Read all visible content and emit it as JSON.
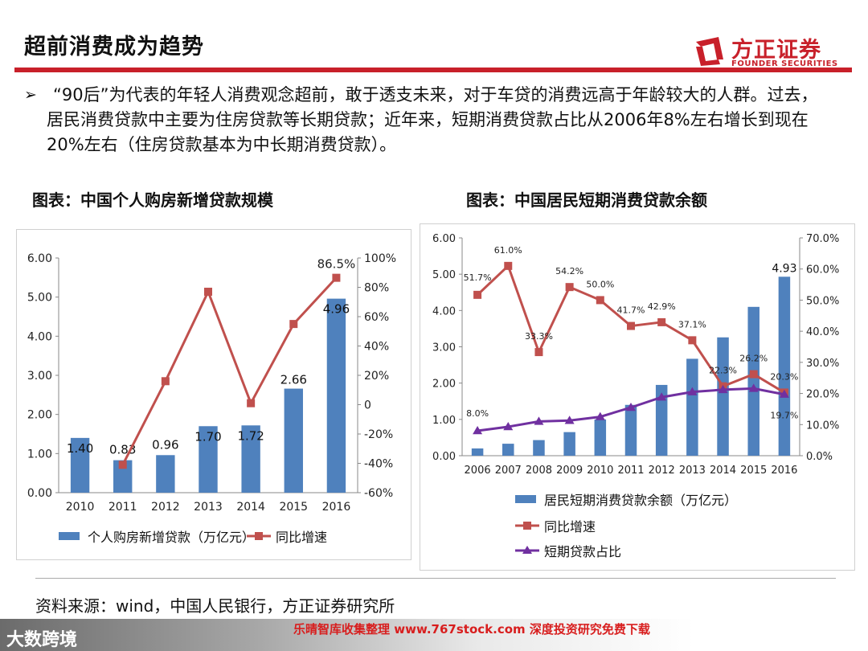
{
  "header": {
    "title": "超前消费成为趋势",
    "logo_name": "方正证券",
    "logo_en": "FOUNDER SECURITIES",
    "accent_color": "#c8202a"
  },
  "bullet": {
    "mark": "➢",
    "text": "“90后”为代表的年轻人消费观念超前，敢于透支未来，对于车贷的消费远高于年龄较大的人群。过去，居民消费贷款中主要为住房贷款等长期贷款；近年来，短期消费贷款占比从2006年8%左右增长到现在20%左右（住房贷款基本为中长期消费贷款）。"
  },
  "source": "资料来源：wind，中国人民银行，方正证券研究所",
  "watermark": {
    "logo": "大数跨境",
    "text": "乐晴智库收集整理 www.767stock.com 深度投资研究免费下载"
  },
  "chart_data": [
    {
      "type": "bar+line",
      "title": "图表：中国个人购房新增贷款规模",
      "categories": [
        "2010",
        "2011",
        "2012",
        "2013",
        "2014",
        "2015",
        "2016"
      ],
      "series": [
        {
          "name": "个人购房新增贷款（万亿元）",
          "kind": "bar",
          "axis": "left",
          "color": "#4f81bd",
          "values": [
            1.4,
            0.83,
            0.96,
            1.7,
            1.72,
            2.66,
            4.96
          ],
          "labels": [
            "1.40",
            "0.83",
            "0.96",
            "1.70",
            "1.72",
            "2.66",
            "4.96"
          ]
        },
        {
          "name": "同比增速",
          "kind": "line",
          "axis": "right",
          "color": "#c0504d",
          "values": [
            null,
            -41,
            16,
            77,
            1,
            55,
            86.5
          ],
          "labels": [
            "",
            "",
            "",
            "",
            "",
            "",
            "86.5%"
          ]
        }
      ],
      "left_axis": {
        "min": 0,
        "max": 6,
        "ticks": [
          "0.00",
          "1.00",
          "2.00",
          "3.00",
          "4.00",
          "5.00",
          "6.00"
        ]
      },
      "right_axis": {
        "min": -60,
        "max": 100,
        "ticks": [
          "-60%",
          "-40%",
          "-20%",
          "0",
          "20%",
          "40%",
          "60%",
          "80%",
          "100%"
        ]
      }
    },
    {
      "type": "bar+line",
      "title": "图表：中国居民短期消费贷款余额",
      "categories": [
        "2006",
        "2007",
        "2008",
        "2009",
        "2010",
        "2011",
        "2012",
        "2013",
        "2014",
        "2015",
        "2016"
      ],
      "series": [
        {
          "name": "居民短期消费贷款余额（万亿元）",
          "kind": "bar",
          "axis": "left",
          "color": "#4f81bd",
          "values": [
            0.2,
            0.33,
            0.43,
            0.65,
            1.0,
            1.4,
            1.95,
            2.67,
            3.26,
            4.1,
            4.93
          ],
          "labels": [
            "",
            "",
            "",
            "",
            "",
            "",
            "",
            "",
            "",
            "",
            "4.93"
          ]
        },
        {
          "name": "同比增速",
          "kind": "line",
          "axis": "right",
          "color": "#c0504d",
          "values": [
            51.7,
            61.0,
            33.3,
            54.2,
            50.0,
            41.7,
            42.9,
            37.1,
            22.3,
            26.2,
            20.3
          ],
          "labels": [
            "51.7%",
            "61.0%",
            "33.3%",
            "54.2%",
            "50.0%",
            "41.7%",
            "42.9%",
            "37.1%",
            "22.3%",
            "26.2%",
            "20.3%"
          ]
        },
        {
          "name": "短期贷款占比",
          "kind": "line",
          "axis": "right",
          "color": "#7030a0",
          "values": [
            8.0,
            9.3,
            11.0,
            11.3,
            12.5,
            15.5,
            18.8,
            20.5,
            21.2,
            21.6,
            19.7
          ],
          "labels": [
            "8.0%",
            "",
            "",
            "",
            "",
            "",
            "",
            "",
            "",
            "",
            "19.7%"
          ]
        }
      ],
      "left_axis": {
        "min": 0,
        "max": 6,
        "ticks": [
          "0.00",
          "1.00",
          "2.00",
          "3.00",
          "4.00",
          "5.00",
          "6.00"
        ]
      },
      "right_axis": {
        "min": 0,
        "max": 70,
        "ticks": [
          "0.0%",
          "10.0%",
          "20.0%",
          "30.0%",
          "40.0%",
          "50.0%",
          "60.0%",
          "70.0%"
        ]
      }
    }
  ]
}
